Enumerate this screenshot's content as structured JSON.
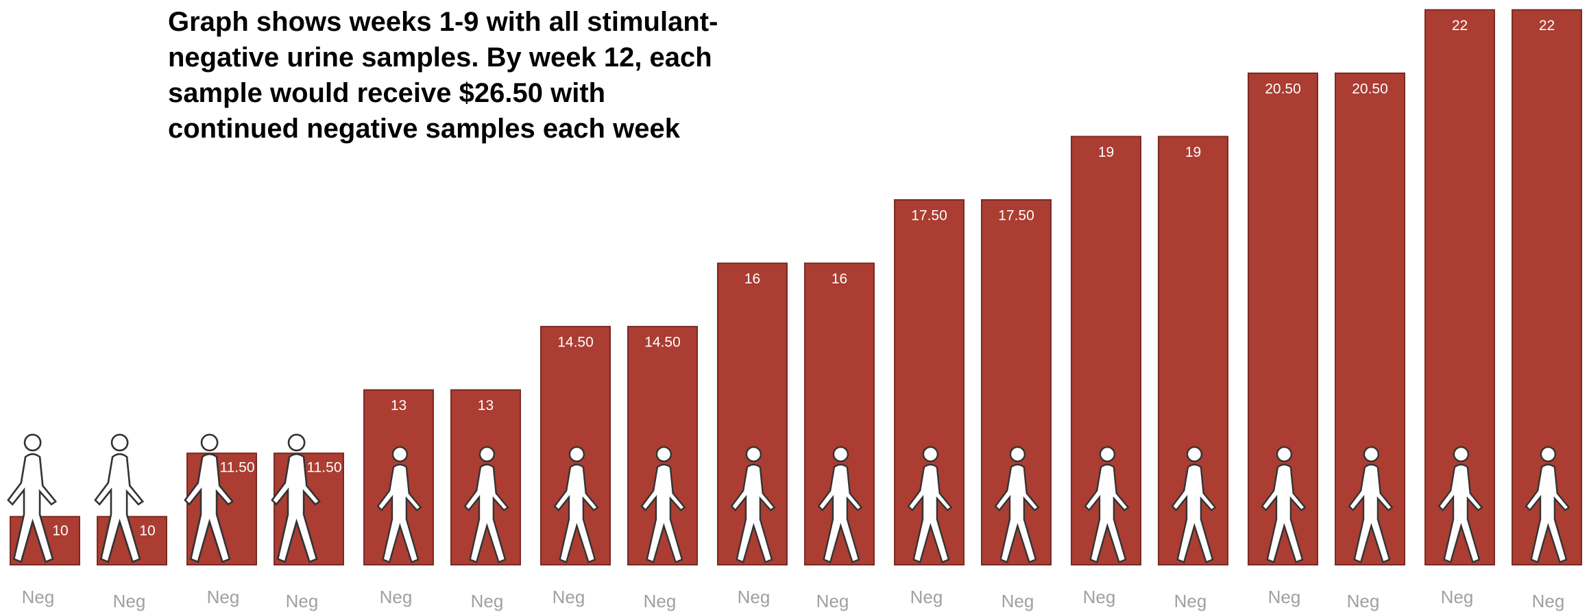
{
  "chart_data": {
    "type": "bar",
    "title": "Graph shows weeks 1-9 with all stimulant-negative urine samples.  By week 12, each sample would receive $26.50 with continued negative samples each week",
    "categories": [
      "Neg",
      "Neg",
      "Neg",
      "Neg",
      "Neg",
      "Neg",
      "Neg",
      "Neg",
      "Neg",
      "Neg",
      "Neg",
      "Neg",
      "Neg",
      "Neg",
      "Neg",
      "Neg",
      "Neg",
      "Neg"
    ],
    "values": [
      10,
      10,
      11.5,
      11.5,
      13,
      13,
      14.5,
      14.5,
      16,
      16,
      17.5,
      17.5,
      19,
      19,
      20.5,
      20.5,
      22,
      22
    ],
    "value_labels": [
      "10",
      "10",
      "11.50",
      "11.50",
      "13",
      "13",
      "14.50",
      "14.50",
      "16",
      "16",
      "17.50",
      "17.50",
      "19",
      "19",
      "20.50",
      "20.50",
      "22",
      "22"
    ],
    "color": "#ab3d32",
    "ylim": [
      8.86,
      22.12
    ]
  }
}
